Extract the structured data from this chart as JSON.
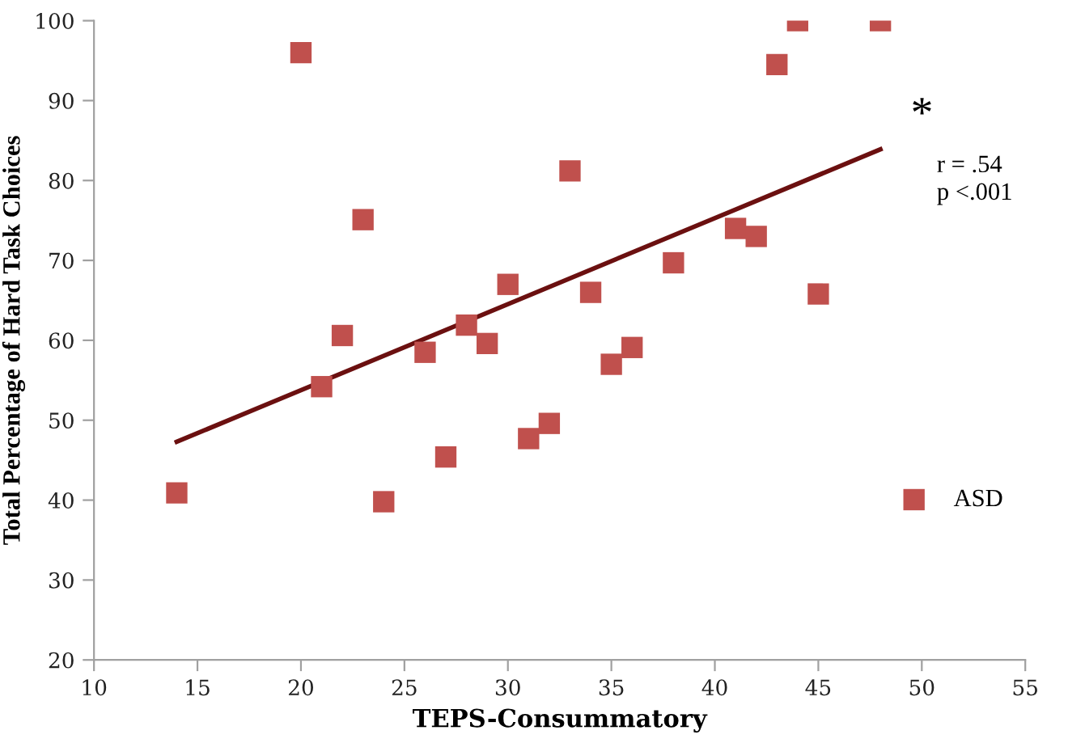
{
  "chart_data": {
    "type": "scatter",
    "xlabel": "TEPS-Consummatory",
    "ylabel": "Total Percentage of Hard Task Choices",
    "xlim": [
      10,
      55
    ],
    "xticks": [
      10,
      15,
      20,
      25,
      30,
      35,
      40,
      45,
      50,
      55
    ],
    "ylim": [
      20,
      100
    ],
    "yticks": [
      20,
      30,
      40,
      50,
      60,
      70,
      80,
      90,
      100
    ],
    "grid": false,
    "legend": "right",
    "marker": "square",
    "annotations": [
      "*",
      "r = .54\np <.001"
    ],
    "series": [
      {
        "name": "ASD",
        "color": "#c0504d",
        "x": [
          14,
          20,
          21,
          22,
          23,
          24,
          26,
          27,
          28,
          29,
          30,
          31,
          32,
          33,
          34,
          35,
          36,
          38,
          41,
          42,
          43,
          44,
          45,
          48
        ],
        "values": [
          40.9,
          96.0,
          54.2,
          60.6,
          75.1,
          39.8,
          58.5,
          45.4,
          61.9,
          59.6,
          67.0,
          47.7,
          49.6,
          81.2,
          66.0,
          57.0,
          59.1,
          69.7,
          74.0,
          73.0,
          94.5,
          100,
          65.8,
          100
        ]
      },
      {
        "type": "line",
        "color": "#6b1010",
        "x": [
          14,
          48
        ],
        "values": [
          47.3,
          83.9
        ],
        "line_style": "solid",
        "marker": "none"
      }
    ]
  }
}
